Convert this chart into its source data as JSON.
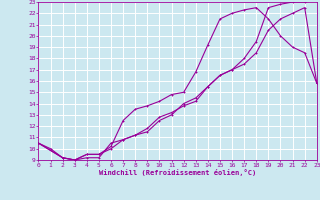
{
  "xlabel": "Windchill (Refroidissement éolien,°C)",
  "bg_color": "#cce8f0",
  "grid_color": "#ffffff",
  "line_color": "#990099",
  "xmin": 0,
  "xmax": 23,
  "ymin": 9,
  "ymax": 23,
  "line1_x": [
    0,
    1,
    2,
    3,
    4,
    5,
    6,
    7,
    8,
    9,
    10,
    11,
    12,
    13,
    14,
    15,
    16,
    17,
    18,
    19,
    20,
    21,
    22,
    23
  ],
  "line1_y": [
    10.5,
    10.0,
    9.2,
    9.0,
    9.2,
    9.2,
    10.5,
    10.8,
    11.2,
    11.5,
    12.5,
    13.0,
    14.0,
    14.5,
    15.5,
    16.5,
    17.0,
    18.0,
    19.5,
    22.5,
    22.8,
    23.0,
    23.0,
    23.2
  ],
  "line2_x": [
    0,
    2,
    3,
    4,
    5,
    6,
    7,
    8,
    9,
    10,
    11,
    12,
    13,
    14,
    15,
    16,
    17,
    18,
    19,
    20,
    21,
    22,
    23
  ],
  "line2_y": [
    10.5,
    9.2,
    9.0,
    9.5,
    9.5,
    10.2,
    12.5,
    13.5,
    13.8,
    14.2,
    14.8,
    15.0,
    16.8,
    19.2,
    21.5,
    22.0,
    22.3,
    22.5,
    21.5,
    20.0,
    19.0,
    18.5,
    15.8
  ],
  "line3_x": [
    0,
    2,
    3,
    4,
    5,
    6,
    7,
    8,
    9,
    10,
    11,
    12,
    13,
    14,
    15,
    16,
    17,
    18,
    19,
    20,
    21,
    22,
    23
  ],
  "line3_y": [
    10.5,
    9.2,
    9.0,
    9.5,
    9.5,
    10.0,
    10.8,
    11.2,
    11.8,
    12.8,
    13.2,
    13.8,
    14.2,
    15.5,
    16.5,
    17.0,
    17.5,
    18.5,
    20.5,
    21.5,
    22.0,
    22.5,
    15.8
  ],
  "yticks": [
    9,
    10,
    11,
    12,
    13,
    14,
    15,
    16,
    17,
    18,
    19,
    20,
    21,
    22,
    23
  ],
  "xticks": [
    0,
    1,
    2,
    3,
    4,
    5,
    6,
    7,
    8,
    9,
    10,
    11,
    12,
    13,
    14,
    15,
    16,
    17,
    18,
    19,
    20,
    21,
    22,
    23
  ]
}
